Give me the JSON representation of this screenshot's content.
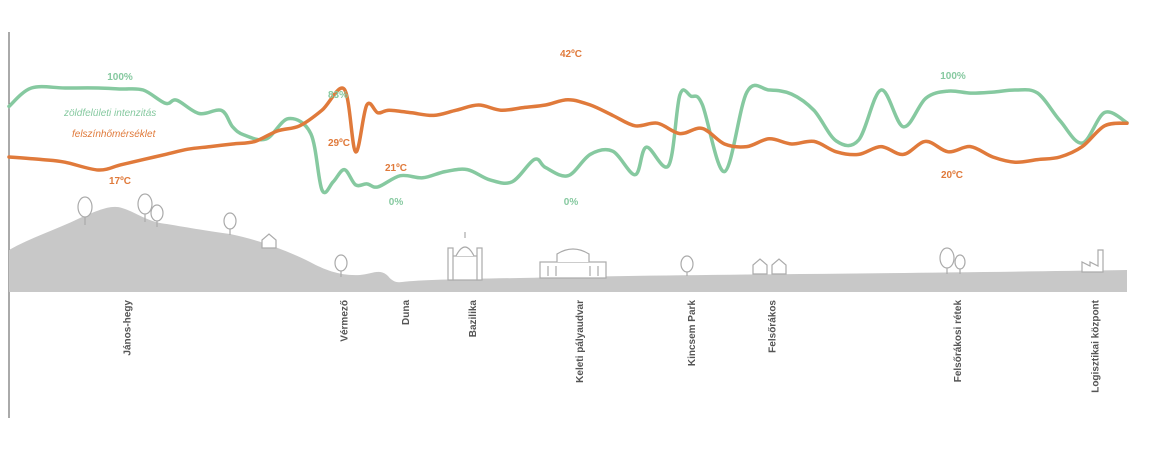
{
  "chart_data": {
    "type": "line",
    "x_range": [
      0,
      100
    ],
    "y_range": [
      0,
      100
    ],
    "series": [
      {
        "name": "zöldfelületi intenzitás",
        "color": "#86c9a0",
        "x": [
          0,
          2,
          5,
          8,
          10,
          12,
          14,
          15,
          17,
          19,
          20,
          21,
          23,
          25,
          27,
          28,
          29,
          30,
          31,
          32,
          33,
          35,
          37,
          39,
          41,
          43,
          45,
          47,
          48,
          50,
          52,
          54,
          56,
          57,
          59,
          60,
          61,
          62,
          64,
          66,
          68,
          70,
          72,
          74,
          76,
          78,
          80,
          82,
          84,
          86,
          88,
          90,
          92,
          94,
          96,
          98,
          100
        ],
        "values": [
          82,
          100,
          100,
          100,
          99,
          98,
          85,
          88,
          75,
          78,
          62,
          54,
          50,
          70,
          55,
          0,
          8,
          20,
          5,
          6,
          3,
          14,
          12,
          18,
          20,
          10,
          8,
          30,
          22,
          14,
          35,
          38,
          15,
          42,
          24,
          93,
          92,
          84,
          18,
          96,
          98,
          94,
          78,
          48,
          49,
          98,
          62,
          90,
          97,
          95,
          96,
          98,
          95,
          68,
          46,
          76,
          66
        ]
      },
      {
        "name": "felszínhőmérséklet",
        "color": "#e07a3b",
        "x": [
          0,
          3,
          5,
          8,
          10,
          12,
          14,
          16,
          18,
          20,
          22,
          24,
          26,
          28,
          30,
          31,
          32,
          33,
          34,
          36,
          38,
          40,
          42,
          44,
          46,
          48,
          50,
          52,
          54,
          56,
          58,
          60,
          62,
          64,
          66,
          68,
          70,
          72,
          74,
          76,
          78,
          80,
          82,
          84,
          86,
          88,
          90,
          92,
          94,
          96,
          98,
          100
        ],
        "values": [
          22,
          21,
          20,
          17,
          19,
          21,
          23,
          25,
          26,
          27,
          28,
          32,
          34,
          40,
          48,
          24,
          42,
          39,
          40,
          39,
          38,
          40,
          42,
          40,
          41,
          42,
          44,
          42,
          38,
          34,
          35,
          31,
          33,
          27,
          26,
          29,
          27,
          28,
          24,
          23,
          26,
          23,
          28,
          24,
          26,
          22,
          20,
          21,
          22,
          26,
          34,
          35
        ]
      }
    ],
    "legend": {
      "position": "top-left",
      "green_label": "zöldfelületi intenzitás",
      "orange_label": "felszínhőmérséklet"
    },
    "annotations": [
      {
        "text": "100%",
        "series": "green"
      },
      {
        "text": "83%",
        "series": "green"
      },
      {
        "text": "0%",
        "series": "green"
      },
      {
        "text": "0%",
        "series": "green"
      },
      {
        "text": "100%",
        "series": "green"
      },
      {
        "text": "17ºC",
        "series": "orange"
      },
      {
        "text": "29ºC",
        "series": "orange"
      },
      {
        "text": "21ºC",
        "series": "orange"
      },
      {
        "text": "42ºC",
        "series": "orange"
      },
      {
        "text": "20ºC",
        "series": "orange"
      }
    ],
    "places": [
      {
        "name": "János-hegy",
        "x": 10.5
      },
      {
        "name": "Vérmező",
        "x": 29.9
      },
      {
        "name": "Duna",
        "x": 35.4
      },
      {
        "name": "Bazilika",
        "x": 41.4
      },
      {
        "name": "Keleti pályaudvar",
        "x": 51.0
      },
      {
        "name": "Kincsem Park",
        "x": 61.0
      },
      {
        "name": "Felsőrákos",
        "x": 68.2
      },
      {
        "name": "Felsőrákosi rétek",
        "x": 84.8
      },
      {
        "name": "Logisztikai központ",
        "x": 97.1
      }
    ],
    "grid": false
  }
}
